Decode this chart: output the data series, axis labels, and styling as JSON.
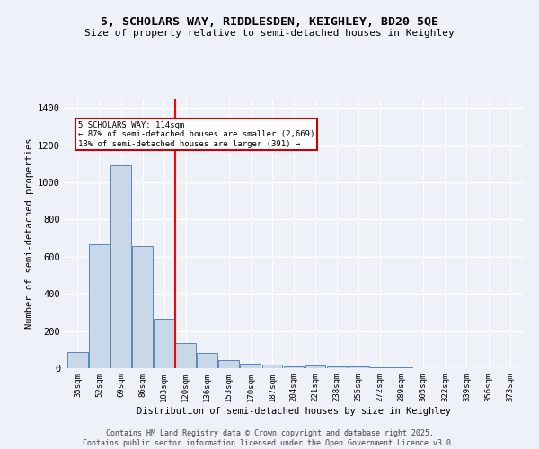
{
  "title": "5, SCHOLARS WAY, RIDDLESDEN, KEIGHLEY, BD20 5QE",
  "subtitle": "Size of property relative to semi-detached houses in Keighley",
  "xlabel": "Distribution of semi-detached houses by size in Keighley",
  "ylabel": "Number of semi-detached properties",
  "categories": [
    "35sqm",
    "52sqm",
    "69sqm",
    "86sqm",
    "103sqm",
    "120sqm",
    "136sqm",
    "153sqm",
    "170sqm",
    "187sqm",
    "204sqm",
    "221sqm",
    "238sqm",
    "255sqm",
    "272sqm",
    "289sqm",
    "305sqm",
    "322sqm",
    "339sqm",
    "356sqm",
    "373sqm"
  ],
  "values": [
    88,
    668,
    1090,
    655,
    265,
    135,
    80,
    45,
    25,
    20,
    10,
    15,
    10,
    8,
    5,
    3,
    2,
    2,
    1,
    1,
    1
  ],
  "bar_color": "#c8d8e8",
  "bar_edge_color": "#5588bb",
  "background_color": "#eef2f8",
  "grid_color": "#ffffff",
  "red_line_x": 4.5,
  "annotation_text": "5 SCHOLARS WAY: 114sqm\n← 87% of semi-detached houses are smaller (2,669)\n13% of semi-detached houses are larger (391) →",
  "annotation_box_color": "#ffffff",
  "annotation_box_edge": "#cc0000",
  "footer_line1": "Contains HM Land Registry data © Crown copyright and database right 2025.",
  "footer_line2": "Contains public sector information licensed under the Open Government Licence v3.0.",
  "ylim": [
    0,
    1450
  ],
  "yticks": [
    0,
    200,
    400,
    600,
    800,
    1000,
    1200,
    1400
  ]
}
